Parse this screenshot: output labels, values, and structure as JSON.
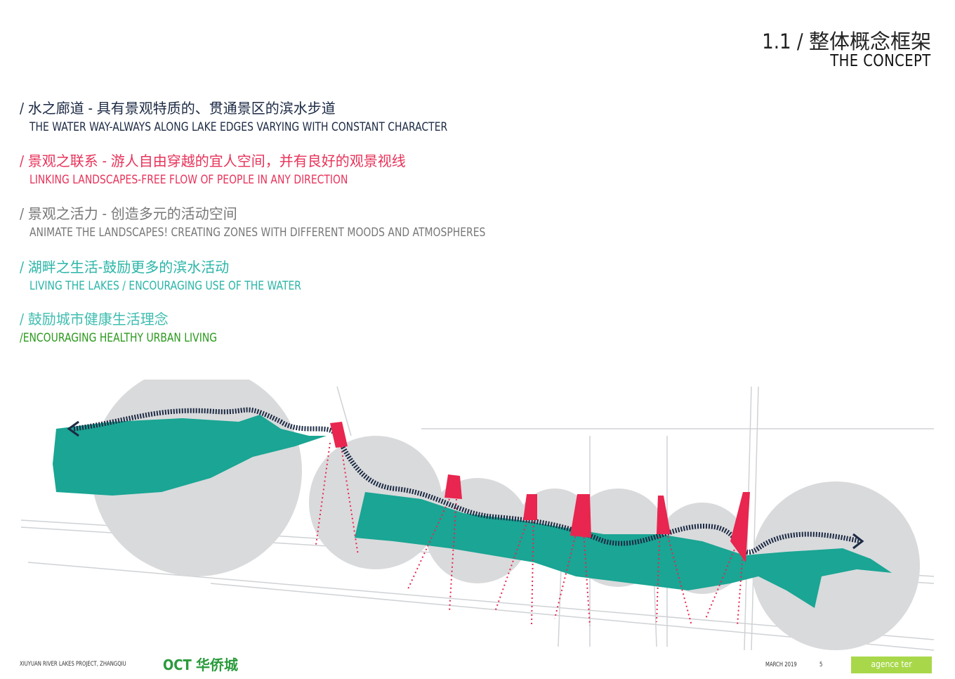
{
  "header": {
    "title_zh": "1.1 / 整体概念框架",
    "title_en": "THE CONCEPT"
  },
  "concepts": [
    {
      "zh": "/ 水之廊道 - 具有景观特质的、贯通景区的滨水步道",
      "en": "THE WATER WAY-ALWAYS ALONG LAKE EDGES VARYING WITH CONSTANT CHARACTER",
      "color_zh": "#1c2a44",
      "color_en": "#1c2a44"
    },
    {
      "zh": "/ 景观之联系 - 游人自由穿越的宜人空间，并有良好的观景视线",
      "en": "LINKING LANDSCAPES-FREE FLOW OF PEOPLE IN ANY DIRECTION",
      "color_zh": "#e8335a",
      "color_en": "#e8335a"
    },
    {
      "zh": "/ 景观之活力 - 创造多元的活动空间",
      "en": "ANIMATE THE LANDSCAPES! CREATING ZONES WITH DIFFERENT MOODS AND ATMOSPHERES",
      "color_zh": "#777777",
      "color_en": "#777777"
    },
    {
      "zh": "/ 湖畔之生活-鼓励更多的滨水活动",
      "en": "LIVING THE LAKES / ENCOURAGING USE OF THE WATER",
      "color_zh": "#2bb5a8",
      "color_en": "#2bb5a8"
    },
    {
      "zh": "/ 鼓励城市健康生活理念",
      "en": "/ENCOURAGING HEALTHY URBAN LIVING",
      "color_zh": "#3fbdb0",
      "color_en": "#2a9a1c"
    }
  ],
  "colors": {
    "water": "#1aa594",
    "circle": "#d9dadc",
    "accent": "#e8264f",
    "path": "#1c2a44"
  },
  "footer": {
    "project": "XIUYUAN RIVER LAKES PROJECT, ZHANGQIU",
    "client_logo": "OCT 华侨城",
    "date": "MARCH 2019",
    "page": "5",
    "agency_logo": "agence ter"
  }
}
